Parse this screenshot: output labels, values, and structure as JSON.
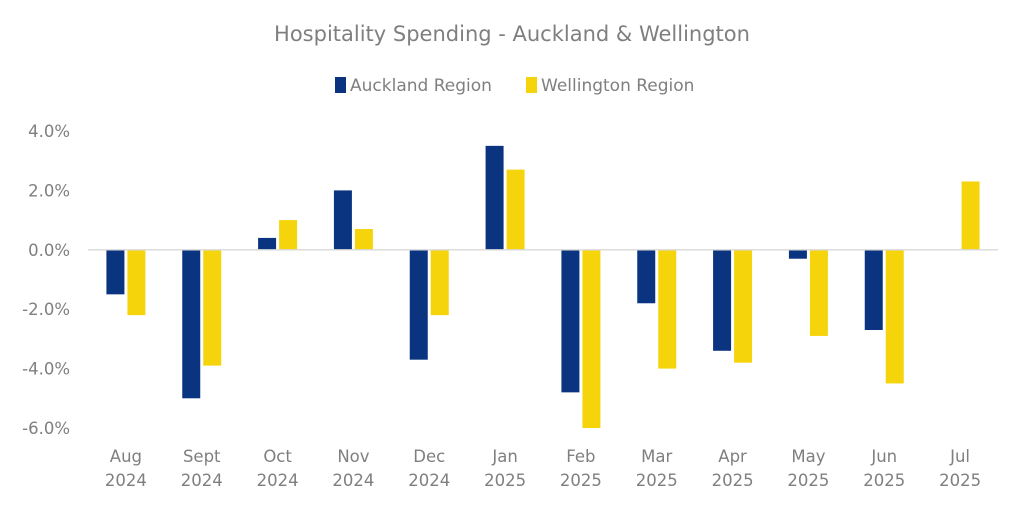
{
  "chart_data": {
    "type": "bar",
    "title": "Hospitality Spending - Auckland & Wellington",
    "categories": [
      [
        "Aug",
        "2024"
      ],
      [
        "Sept",
        "2024"
      ],
      [
        "Oct",
        "2024"
      ],
      [
        "Nov",
        "2024"
      ],
      [
        "Dec",
        "2024"
      ],
      [
        "Jan",
        "2025"
      ],
      [
        "Feb",
        "2025"
      ],
      [
        "Mar",
        "2025"
      ],
      [
        "Apr",
        "2025"
      ],
      [
        "May",
        "2025"
      ],
      [
        "Jun",
        "2025"
      ],
      [
        "Jul",
        "2025"
      ]
    ],
    "series": [
      {
        "name": "Auckland Region",
        "color": "#0b3480",
        "values": [
          -1.5,
          -5.0,
          0.4,
          2.0,
          -3.7,
          3.5,
          -4.8,
          -1.8,
          -3.4,
          -0.3,
          -2.7,
          null
        ]
      },
      {
        "name": "Wellington Region",
        "color": "#f6d40c",
        "values": [
          -2.2,
          -3.9,
          1.0,
          0.7,
          -2.2,
          2.7,
          -6.0,
          -4.0,
          -3.8,
          -2.9,
          -4.5,
          2.3
        ]
      }
    ],
    "ylim": [
      -6.0,
      4.0
    ],
    "yticks": [
      4.0,
      2.0,
      0.0,
      -2.0,
      -4.0,
      -6.0
    ],
    "ytick_labels": [
      "4.0%",
      "2.0%",
      "0.0%",
      "-2.0%",
      "-4.0%",
      "-6.0%"
    ],
    "grid": false,
    "legend_position": "top-center",
    "axis_color": "#d9d9d9",
    "text_color": "#7f7f7f"
  }
}
